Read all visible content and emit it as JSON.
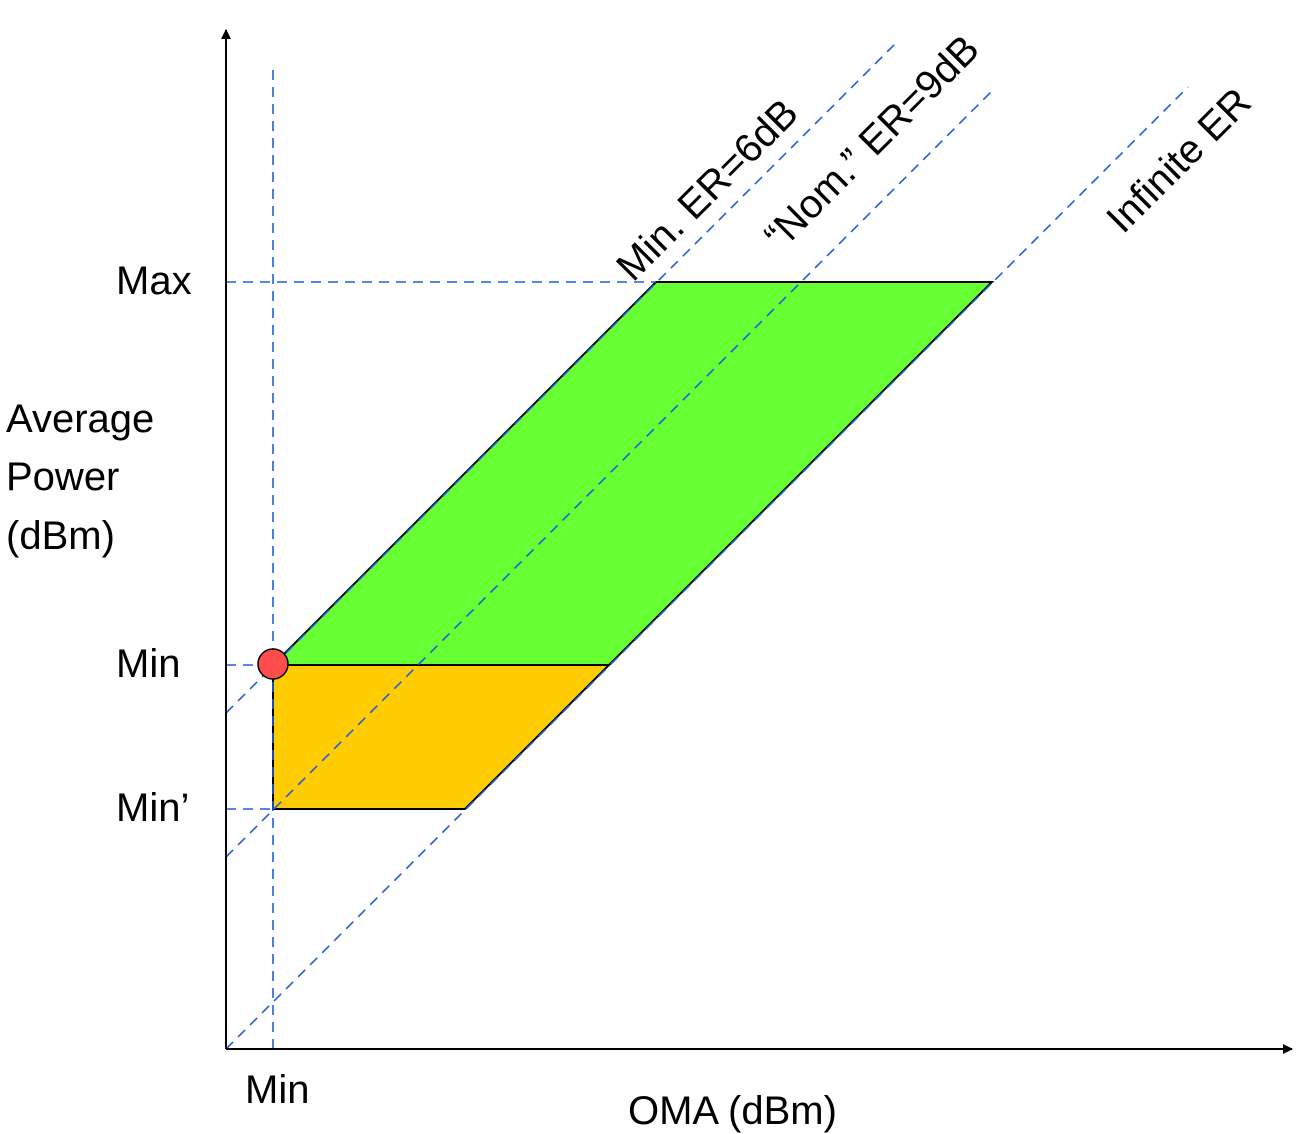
{
  "colors": {
    "guide": "#1f5fe0",
    "green_region": "#66ff33",
    "amber_region": "#ffcc00",
    "marker": "#ff4d4d",
    "outline": "#000000"
  },
  "axes": {
    "x_label": "OMA (dBm)",
    "y_label_lines": [
      "Average",
      "Power",
      "(dBm)"
    ]
  },
  "ticks": {
    "y_max": "Max",
    "y_min": "Min",
    "y_min_prime": "Min’",
    "x_min": "Min"
  },
  "lines": {
    "min_er": "Min. ER=6dB",
    "nom_er": "“Nom.” ER=9dB",
    "infinite_er": "Infinite ER"
  }
}
